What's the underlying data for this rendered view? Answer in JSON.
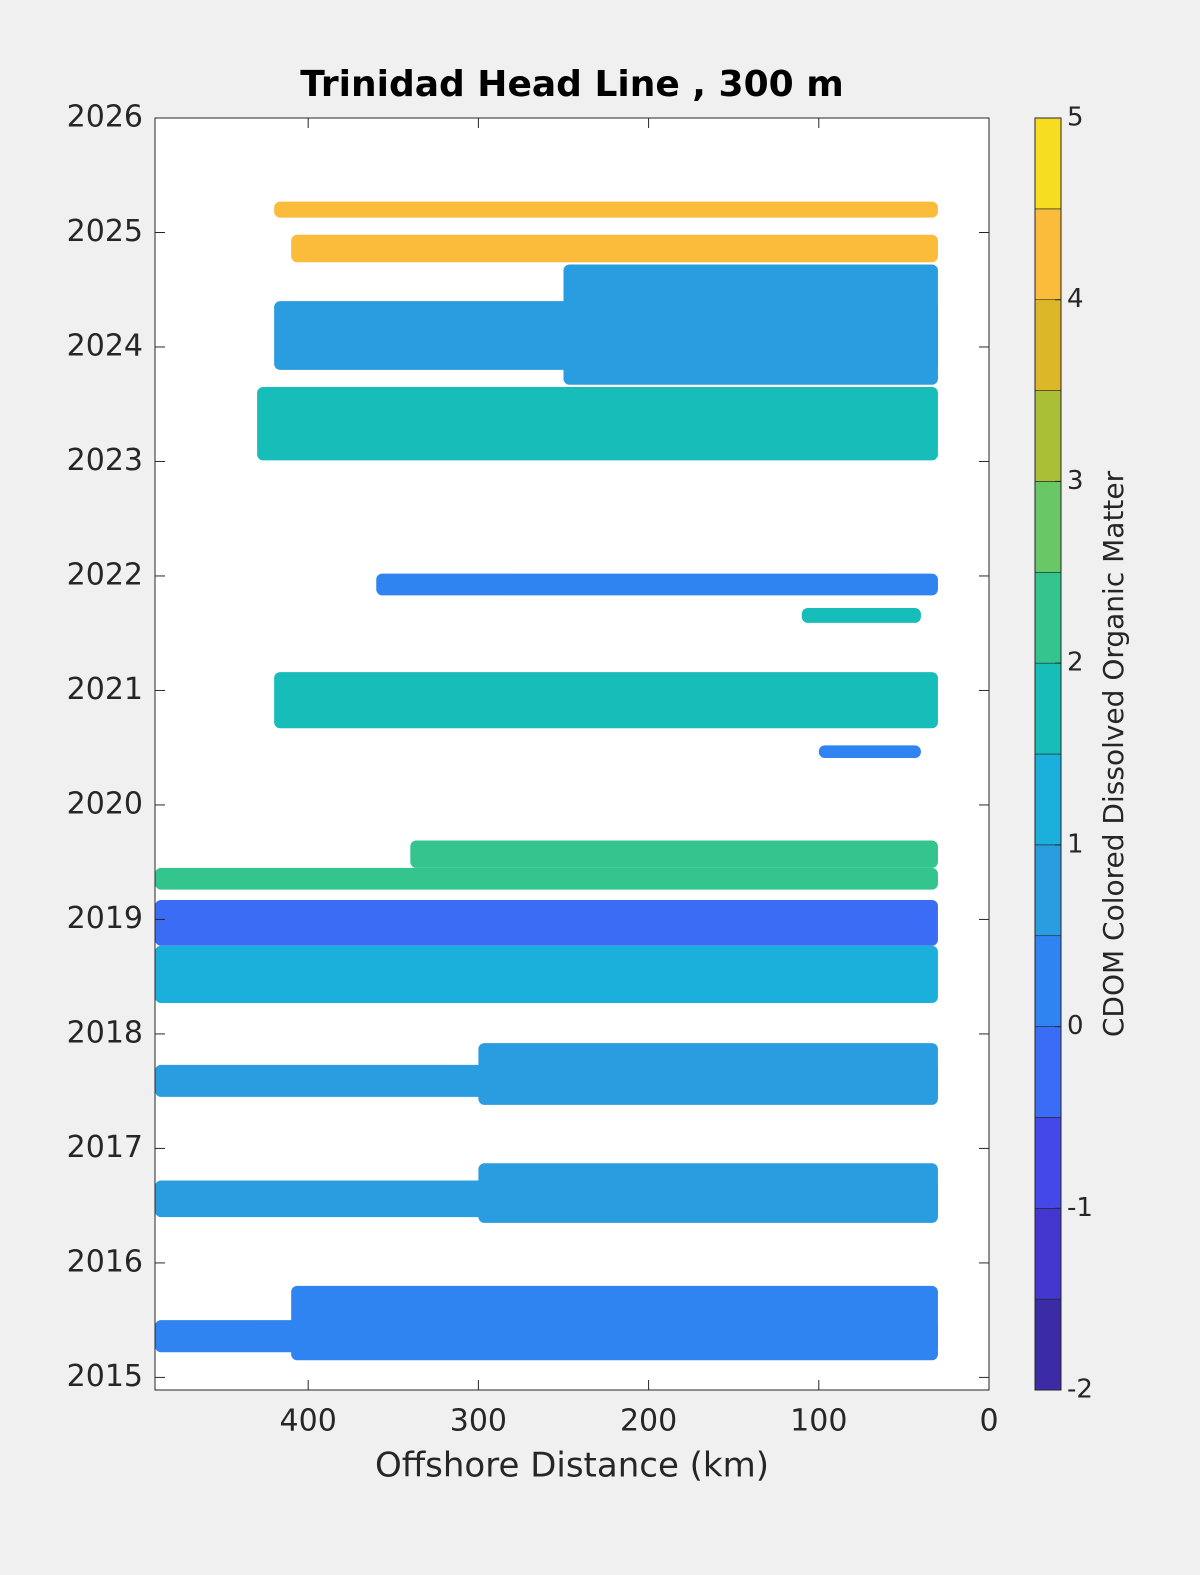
{
  "chart_data": {
    "type": "contour",
    "title": "Trinidad Head Line , 300 m",
    "xlabel": "Offshore Distance (km)",
    "colorbar_label": "CDOM Colored Dissolved Organic Matter",
    "xlim": [
      490,
      0
    ],
    "xticks": [
      400,
      300,
      200,
      100,
      0
    ],
    "ylim": [
      2014.89,
      2026
    ],
    "yticks": [
      2015,
      2016,
      2017,
      2018,
      2019,
      2020,
      2021,
      2022,
      2023,
      2024,
      2025,
      2026
    ],
    "clim": [
      -2,
      5
    ],
    "cticks": [
      -2,
      -1,
      0,
      1,
      2,
      3,
      4,
      5
    ],
    "levels": [
      -2,
      -1.5,
      -1,
      -0.5,
      0,
      0.5,
      1,
      1.5,
      2,
      2.5,
      3,
      3.5,
      4,
      4.5,
      5
    ],
    "colors": [
      "#3b2ca5",
      "#4337d0",
      "#4548e8",
      "#3b6cf6",
      "#2f84f1",
      "#2a9ce0",
      "#1bb0dc",
      "#17bdb8",
      "#34c58f",
      "#6ac766",
      "#aabe36",
      "#dcb829",
      "#fbbc3b",
      "#f6dd22"
    ],
    "regions": [
      {
        "x": [
          420,
          30
        ],
        "y": [
          2025.13,
          2025.27
        ],
        "value": 4.2
      },
      {
        "x": [
          410,
          30
        ],
        "y": [
          2024.74,
          2024.98
        ],
        "value": 4.3
      },
      {
        "x": [
          420,
          30
        ],
        "y": [
          2023.8,
          2024.4
        ],
        "value": 0.8
      },
      {
        "x": [
          250,
          30
        ],
        "y": [
          2023.67,
          2024.72
        ],
        "value": 0.8
      },
      {
        "x": [
          430,
          30
        ],
        "y": [
          2023.01,
          2023.65
        ],
        "value": 1.8
      },
      {
        "x": [
          360,
          30
        ],
        "y": [
          2021.83,
          2022.02
        ],
        "value": 0.3
      },
      {
        "x": [
          110,
          40
        ],
        "y": [
          2021.59,
          2021.72
        ],
        "value": 1.7
      },
      {
        "x": [
          420,
          30
        ],
        "y": [
          2020.67,
          2021.16
        ],
        "value": 1.8
      },
      {
        "x": [
          100,
          40
        ],
        "y": [
          2020.41,
          2020.52
        ],
        "value": 0.3
      },
      {
        "x": [
          490,
          30
        ],
        "y": [
          2019.26,
          2019.45
        ],
        "value": 2.2
      },
      {
        "x": [
          340,
          30
        ],
        "y": [
          2019.45,
          2019.69
        ],
        "value": 2.3
      },
      {
        "x": [
          490,
          30
        ],
        "y": [
          2018.77,
          2019.17
        ],
        "value": -0.3
      },
      {
        "x": [
          490,
          30
        ],
        "y": [
          2018.27,
          2018.77
        ],
        "value": 1.3
      },
      {
        "x": [
          490,
          30
        ],
        "y": [
          2017.45,
          2017.73
        ],
        "value": 0.6
      },
      {
        "x": [
          300,
          30
        ],
        "y": [
          2017.38,
          2017.92
        ],
        "value": 0.6
      },
      {
        "x": [
          490,
          30
        ],
        "y": [
          2016.4,
          2016.72
        ],
        "value": 0.6
      },
      {
        "x": [
          300,
          30
        ],
        "y": [
          2016.35,
          2016.87
        ],
        "value": 0.6
      },
      {
        "x": [
          490,
          30
        ],
        "y": [
          2015.22,
          2015.5
        ],
        "value": 0.3
      },
      {
        "x": [
          410,
          30
        ],
        "y": [
          2015.15,
          2015.8
        ],
        "value": 0.3
      }
    ]
  }
}
